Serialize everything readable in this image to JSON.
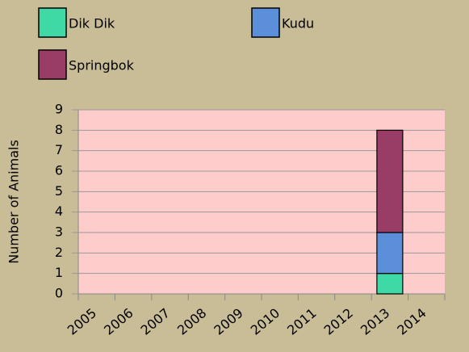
{
  "chart_data": {
    "type": "stacked_bar",
    "y_label": "Number of Animals",
    "categories": [
      "2005",
      "2006",
      "2007",
      "2008",
      "2009",
      "2010",
      "2011",
      "2012",
      "2013",
      "2014"
    ],
    "series": [
      {
        "name": "Dik Dik",
        "color": "#3fd9a6",
        "values": [
          0,
          0,
          0,
          0,
          0,
          0,
          0,
          0,
          1,
          0
        ]
      },
      {
        "name": "Kudu",
        "color": "#5b8fd9",
        "values": [
          0,
          0,
          0,
          0,
          0,
          0,
          0,
          0,
          2,
          0
        ]
      },
      {
        "name": "Springbok",
        "color": "#993d66",
        "values": [
          0,
          0,
          0,
          0,
          0,
          0,
          0,
          0,
          5,
          0
        ]
      }
    ],
    "ylim": [
      0,
      9
    ],
    "yticks": [
      0,
      1,
      2,
      3,
      4,
      5,
      6,
      7,
      8,
      9
    ],
    "grid": true
  }
}
